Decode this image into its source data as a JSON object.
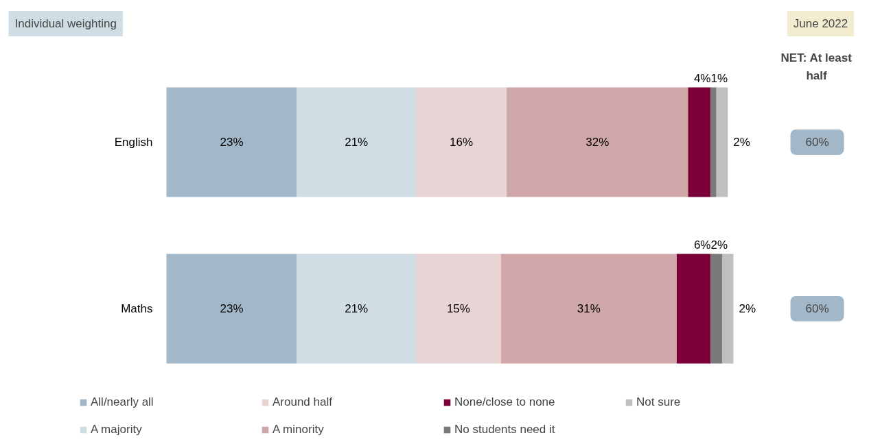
{
  "chart_data": {
    "type": "bar",
    "orientation": "horizontal",
    "stacked": true,
    "categories": [
      "English",
      "Maths"
    ],
    "series": [
      {
        "name": "All/nearly all",
        "color": "#a2b8c8",
        "values": [
          23,
          23
        ],
        "value_labels": [
          "23%",
          "23%"
        ]
      },
      {
        "name": "A majority",
        "color": "#d0dde4",
        "values": [
          21,
          21
        ],
        "value_labels": [
          "21%",
          "21%"
        ]
      },
      {
        "name": "Around half",
        "color": "#e8d3d5",
        "values": [
          16,
          15
        ],
        "value_labels": [
          "16%",
          "15%"
        ]
      },
      {
        "name": "A minority",
        "color": "#cfa7a8",
        "values": [
          32,
          31
        ],
        "value_labels": [
          "32%",
          "31%"
        ]
      },
      {
        "name": "None/close to none",
        "color": "#7b0038",
        "values": [
          4,
          6
        ],
        "value_labels": [
          "4%",
          "6%"
        ]
      },
      {
        "name": "No students need it",
        "color": "#7a7a7a",
        "values": [
          1,
          2
        ],
        "value_labels": [
          "1%",
          "2%"
        ]
      },
      {
        "name": "Not sure",
        "color": "#c0c0c0",
        "values": [
          2,
          2
        ],
        "value_labels": [
          "2%",
          "2%"
        ]
      }
    ],
    "legend": "bottom",
    "grid": false,
    "tick_labels": "y",
    "annotations": [
      "Individual weighting",
      "June 2022",
      "NET: At least half",
      "60%",
      "60%"
    ]
  }
}
